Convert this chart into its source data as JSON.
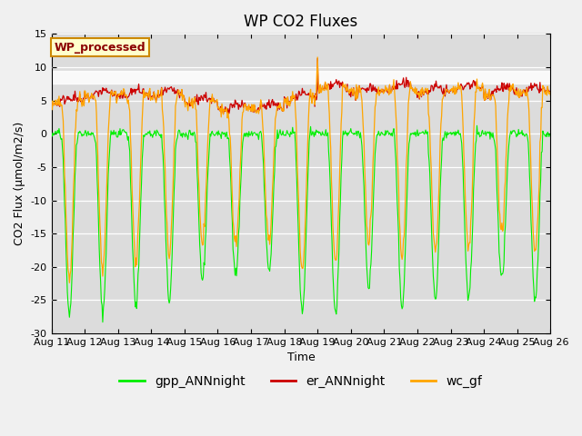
{
  "title": "WP CO2 Fluxes",
  "xlabel": "Time",
  "ylabel": "CO2 Flux (μmol/m2/s)",
  "ylim": [
    -30,
    15
  ],
  "xlim": [
    0,
    360
  ],
  "yticks": [
    -30,
    -25,
    -20,
    -15,
    -10,
    -5,
    0,
    5,
    10,
    15
  ],
  "xtick_labels": [
    "Aug 11",
    "Aug 12",
    "Aug 13",
    "Aug 14",
    "Aug 15",
    "Aug 16",
    "Aug 17",
    "Aug 18",
    "Aug 19",
    "Aug 20",
    "Aug 21",
    "Aug 22",
    "Aug 23",
    "Aug 24",
    "Aug 25",
    "Aug 26"
  ],
  "xtick_positions": [
    0,
    24,
    48,
    72,
    96,
    120,
    144,
    168,
    192,
    216,
    240,
    264,
    288,
    312,
    336,
    360
  ],
  "shaded_band_ymin": 7.5,
  "shaded_band_ymax": 9.5,
  "shaded_band_color": "#d0d0d0",
  "background_color": "#dcdcdc",
  "gpp_color": "#00ee00",
  "er_color": "#cc0000",
  "wc_color": "#ffa500",
  "gpp_label": "gpp_ANNnight",
  "er_label": "er_ANNnight",
  "wc_label": "wc_gf",
  "annotation_text": "WP_processed",
  "annotation_bg": "#ffffcc",
  "annotation_fg": "#8b0000",
  "annotation_border": "#cc8800",
  "legend_fontsize": 10,
  "title_fontsize": 12,
  "axis_fontsize": 9,
  "tick_fontsize": 8,
  "figsize": [
    6.4,
    4.8
  ],
  "dpi": 100,
  "day_start_hour": 7,
  "day_end_hour": 19,
  "gpp_peak": -27,
  "er_base": 5.5,
  "wc_spike_hour": 192,
  "wc_spike_val": 11.5
}
